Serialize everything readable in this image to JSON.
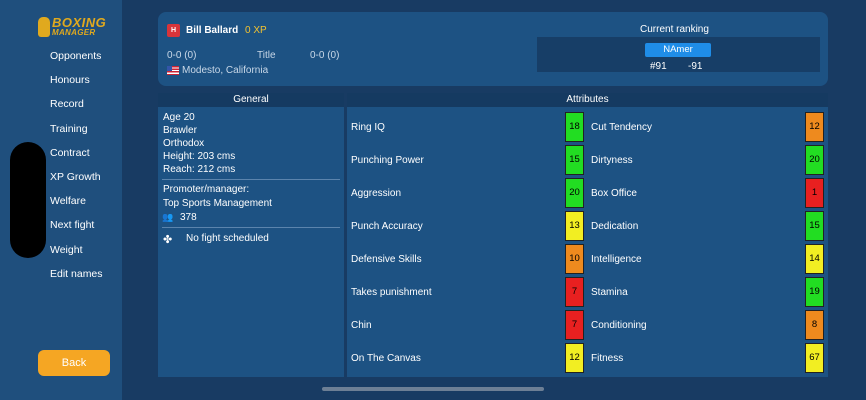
{
  "logo": {
    "line1": "BOXING",
    "line2": "MANAGER"
  },
  "menu": [
    "Opponents",
    "Honours",
    "Record",
    "Training",
    "Contract",
    "XP Growth",
    "Welfare",
    "Next fight",
    "Weight",
    "Edit names"
  ],
  "back_label": "Back",
  "boxer": {
    "badge": "H",
    "name": "Bill Ballard",
    "xp": "0 XP",
    "record": "0-0 (0)",
    "title_label": "Title",
    "title_record": "0-0 (0)",
    "location": "Modesto, California"
  },
  "ranking": {
    "header": "Current ranking",
    "region": "NAmer",
    "rank": "#91",
    "change": "-91"
  },
  "general": {
    "header": "General",
    "age": "Age 20",
    "style": "Brawler",
    "stance": "Orthodox",
    "height": "Height: 203 cms",
    "reach": "Reach: 212 cms",
    "promoter_label": "Promoter/manager:",
    "promoter": "Top Sports Management",
    "fans": "378",
    "next_fight": "No fight scheduled"
  },
  "attributes": {
    "header": "Attributes",
    "left": [
      {
        "label": "Ring IQ",
        "value": "18",
        "color": "#22dd22"
      },
      {
        "label": "Punching Power",
        "value": "15",
        "color": "#22dd22"
      },
      {
        "label": "Aggression",
        "value": "20",
        "color": "#22dd22"
      },
      {
        "label": "Punch Accuracy",
        "value": "13",
        "color": "#f2ee22"
      },
      {
        "label": "Defensive Skills",
        "value": "10",
        "color": "#ee8a1e"
      },
      {
        "label": "Takes punishment",
        "value": "7",
        "color": "#e82020"
      },
      {
        "label": "Chin",
        "value": "7",
        "color": "#e82020"
      },
      {
        "label": "On The Canvas",
        "value": "12",
        "color": "#f2ee22"
      }
    ],
    "right": [
      {
        "label": "Cut Tendency",
        "value": "12",
        "color": "#ee8a1e"
      },
      {
        "label": "Dirtyness",
        "value": "20",
        "color": "#22dd22"
      },
      {
        "label": "Box Office",
        "value": "1",
        "color": "#e82020"
      },
      {
        "label": "Dedication",
        "value": "15",
        "color": "#22dd22"
      },
      {
        "label": "Intelligence",
        "value": "14",
        "color": "#f2ee22"
      },
      {
        "label": "Stamina",
        "value": "19",
        "color": "#22dd22"
      },
      {
        "label": "Conditioning",
        "value": "8",
        "color": "#ee8a1e"
      },
      {
        "label": "Fitness",
        "value": "67",
        "color": "#f2ee22"
      }
    ]
  }
}
